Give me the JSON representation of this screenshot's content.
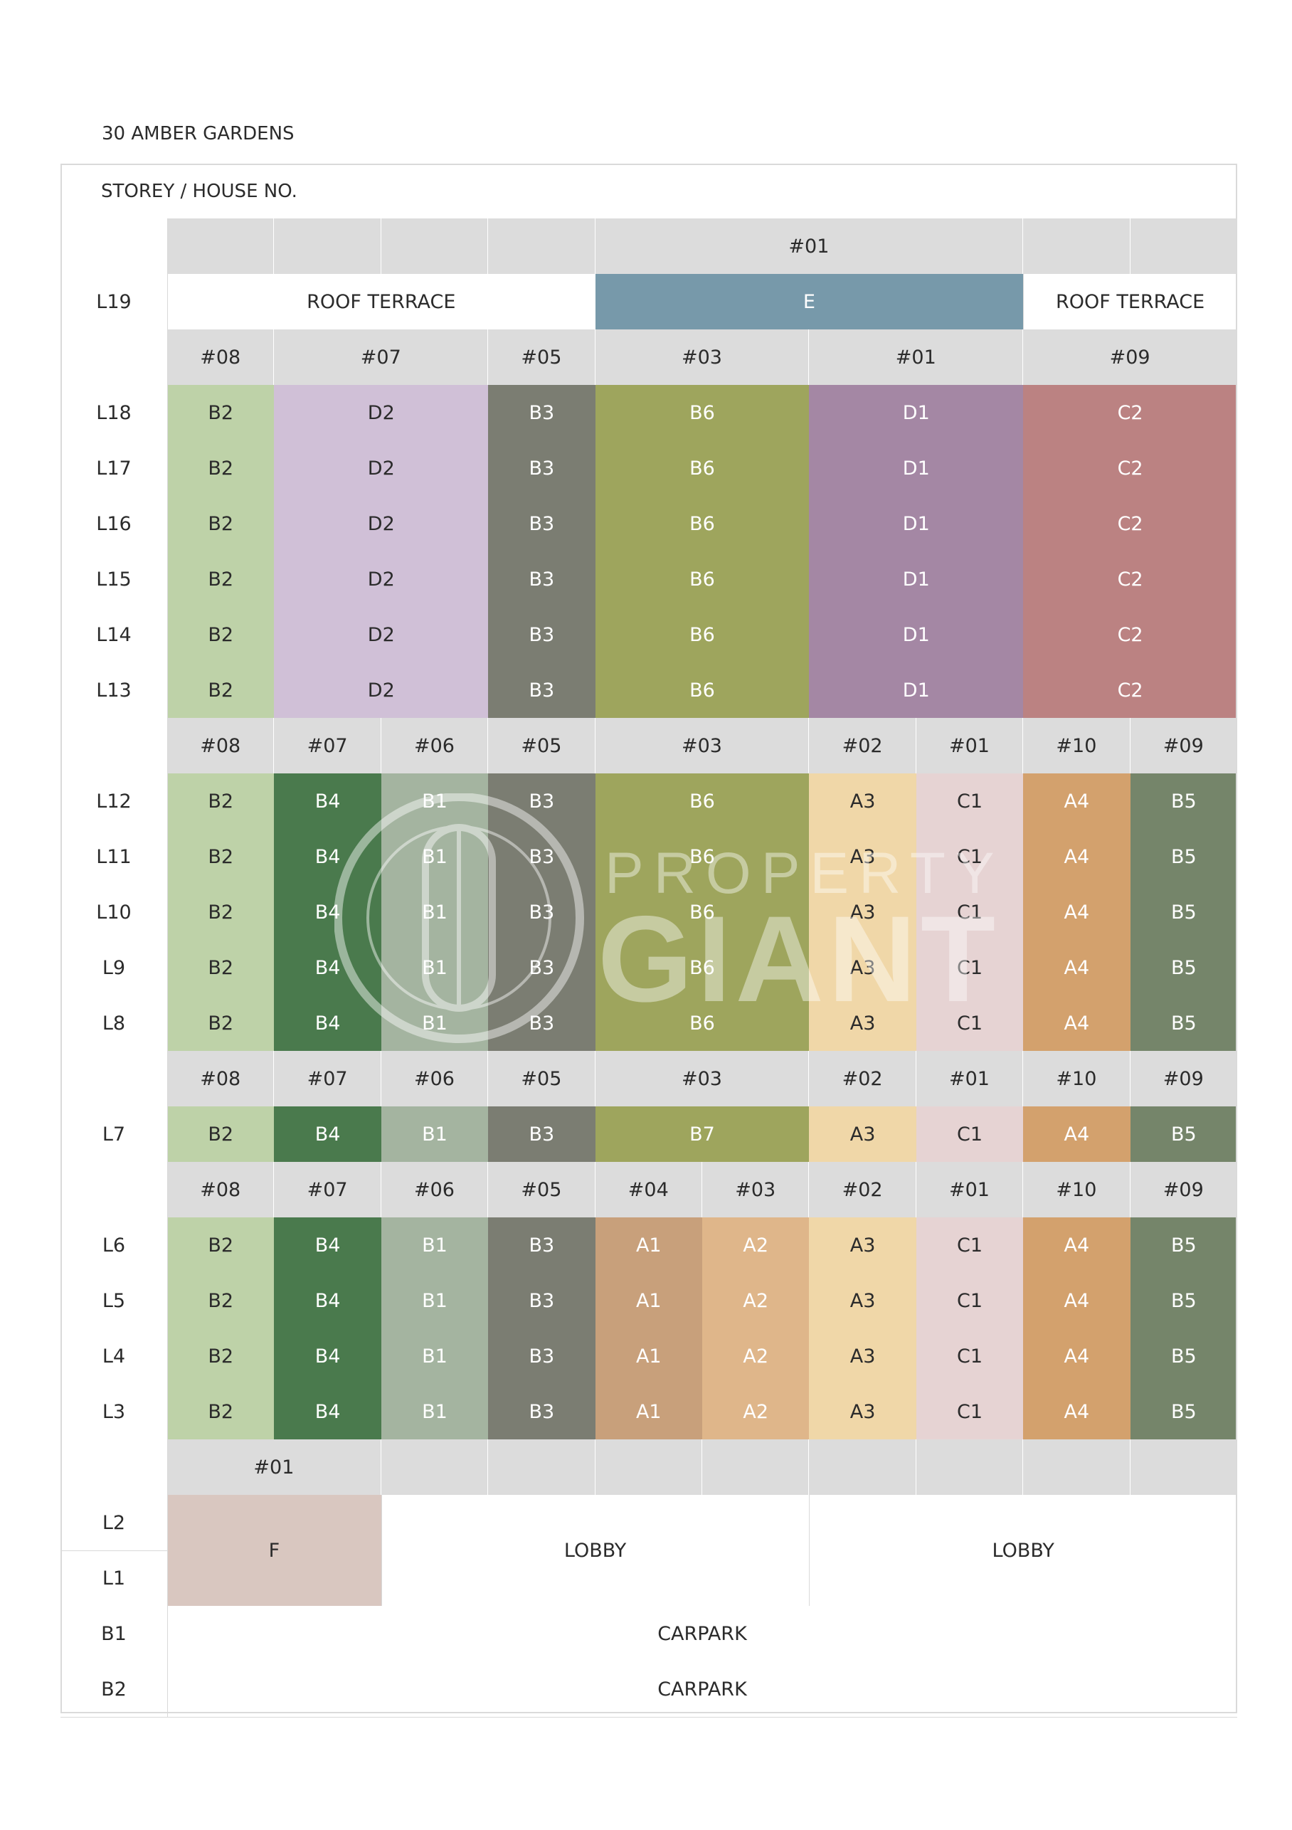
{
  "title": "30 AMBER GARDENS",
  "header_label": "STOREY / HOUSE NO.",
  "watermark": {
    "line1": "PROPERTY",
    "line2": "GIANT"
  },
  "colors": {
    "A1": "#c8a07b",
    "A2": "#dfb68a",
    "A3": "#f0d7a8",
    "A4": "#d3a16d",
    "B1": "#a4b4a0",
    "B2": "#bed2a8",
    "B3": "#7b7d72",
    "B4": "#4a7a4d",
    "B5": "#75856a",
    "B6": "#9ea55d",
    "B7": "#9ea55d",
    "C1": "#e6d3d3",
    "C2": "#bb8282",
    "D1": "#a487a4",
    "D2": "#d0c0d7",
    "E": "#7799aa",
    "F": "#d9c7c0",
    "header": "#dcdcdc"
  },
  "storeys": [
    "L19",
    "L18",
    "L17",
    "L16",
    "L15",
    "L14",
    "L13",
    "L12",
    "L11",
    "L10",
    "L9",
    "L8",
    "L7",
    "L6",
    "L5",
    "L4",
    "L3",
    "L2",
    "L1",
    "B1",
    "B2"
  ],
  "tiers": [
    {
      "header": [
        [
          "",
          1
        ],
        [
          "",
          1
        ],
        [
          "",
          1
        ],
        [
          "",
          1
        ],
        [
          "#01",
          4
        ],
        [
          "",
          1
        ],
        [
          "",
          1
        ]
      ],
      "rows": [
        {
          "storey": "L19",
          "cells": [
            [
              "ROOF TERRACE",
              4,
              "white"
            ],
            [
              "E",
              4,
              "E"
            ],
            [
              "ROOF TERRACE",
              2,
              "white"
            ]
          ]
        }
      ]
    },
    {
      "header": [
        [
          "#08",
          1
        ],
        [
          "#07",
          2
        ],
        [
          "#05",
          1
        ],
        [
          "#03",
          2
        ],
        [
          "#01",
          2
        ],
        [
          "#09",
          2
        ]
      ],
      "rows": [
        {
          "storey": "L18",
          "cells": [
            [
              "B2",
              1
            ],
            [
              "D2",
              2
            ],
            [
              "B3",
              1
            ],
            [
              "B6",
              2
            ],
            [
              "D1",
              2
            ],
            [
              "C2",
              2
            ]
          ]
        },
        {
          "storey": "L17",
          "cells": [
            [
              "B2",
              1
            ],
            [
              "D2",
              2
            ],
            [
              "B3",
              1
            ],
            [
              "B6",
              2
            ],
            [
              "D1",
              2
            ],
            [
              "C2",
              2
            ]
          ]
        },
        {
          "storey": "L16",
          "cells": [
            [
              "B2",
              1
            ],
            [
              "D2",
              2
            ],
            [
              "B3",
              1
            ],
            [
              "B6",
              2
            ],
            [
              "D1",
              2
            ],
            [
              "C2",
              2
            ]
          ]
        },
        {
          "storey": "L15",
          "cells": [
            [
              "B2",
              1
            ],
            [
              "D2",
              2
            ],
            [
              "B3",
              1
            ],
            [
              "B6",
              2
            ],
            [
              "D1",
              2
            ],
            [
              "C2",
              2
            ]
          ]
        },
        {
          "storey": "L14",
          "cells": [
            [
              "B2",
              1
            ],
            [
              "D2",
              2
            ],
            [
              "B3",
              1
            ],
            [
              "B6",
              2
            ],
            [
              "D1",
              2
            ],
            [
              "C2",
              2
            ]
          ]
        },
        {
          "storey": "L13",
          "cells": [
            [
              "B2",
              1
            ],
            [
              "D2",
              2
            ],
            [
              "B3",
              1
            ],
            [
              "B6",
              2
            ],
            [
              "D1",
              2
            ],
            [
              "C2",
              2
            ]
          ]
        }
      ]
    },
    {
      "header": [
        [
          "#08",
          1
        ],
        [
          "#07",
          1
        ],
        [
          "#06",
          1
        ],
        [
          "#05",
          1
        ],
        [
          "#03",
          2
        ],
        [
          "#02",
          1
        ],
        [
          "#01",
          1
        ],
        [
          "#10",
          1
        ],
        [
          "#09",
          1
        ]
      ],
      "rows": [
        {
          "storey": "L12",
          "cells": [
            [
              "B2",
              1
            ],
            [
              "B4",
              1
            ],
            [
              "B1",
              1
            ],
            [
              "B3",
              1
            ],
            [
              "B6",
              2
            ],
            [
              "A3",
              1
            ],
            [
              "C1",
              1
            ],
            [
              "A4",
              1
            ],
            [
              "B5",
              1
            ]
          ]
        },
        {
          "storey": "L11",
          "cells": [
            [
              "B2",
              1
            ],
            [
              "B4",
              1
            ],
            [
              "B1",
              1
            ],
            [
              "B3",
              1
            ],
            [
              "B6",
              2
            ],
            [
              "A3",
              1
            ],
            [
              "C1",
              1
            ],
            [
              "A4",
              1
            ],
            [
              "B5",
              1
            ]
          ]
        },
        {
          "storey": "L10",
          "cells": [
            [
              "B2",
              1
            ],
            [
              "B4",
              1
            ],
            [
              "B1",
              1
            ],
            [
              "B3",
              1
            ],
            [
              "B6",
              2
            ],
            [
              "A3",
              1
            ],
            [
              "C1",
              1
            ],
            [
              "A4",
              1
            ],
            [
              "B5",
              1
            ]
          ]
        },
        {
          "storey": "L9",
          "cells": [
            [
              "B2",
              1
            ],
            [
              "B4",
              1
            ],
            [
              "B1",
              1
            ],
            [
              "B3",
              1
            ],
            [
              "B6",
              2
            ],
            [
              "A3",
              1
            ],
            [
              "C1",
              1
            ],
            [
              "A4",
              1
            ],
            [
              "B5",
              1
            ]
          ]
        },
        {
          "storey": "L8",
          "cells": [
            [
              "B2",
              1
            ],
            [
              "B4",
              1
            ],
            [
              "B1",
              1
            ],
            [
              "B3",
              1
            ],
            [
              "B6",
              2
            ],
            [
              "A3",
              1
            ],
            [
              "C1",
              1
            ],
            [
              "A4",
              1
            ],
            [
              "B5",
              1
            ]
          ]
        }
      ]
    },
    {
      "header": [
        [
          "#08",
          1
        ],
        [
          "#07",
          1
        ],
        [
          "#06",
          1
        ],
        [
          "#05",
          1
        ],
        [
          "#03",
          2
        ],
        [
          "#02",
          1
        ],
        [
          "#01",
          1
        ],
        [
          "#10",
          1
        ],
        [
          "#09",
          1
        ]
      ],
      "rows": [
        {
          "storey": "L7",
          "cells": [
            [
              "B2",
              1
            ],
            [
              "B4",
              1
            ],
            [
              "B1",
              1
            ],
            [
              "B3",
              1
            ],
            [
              "B7",
              2
            ],
            [
              "A3",
              1
            ],
            [
              "C1",
              1
            ],
            [
              "A4",
              1
            ],
            [
              "B5",
              1
            ]
          ]
        }
      ]
    },
    {
      "header": [
        [
          "#08",
          1
        ],
        [
          "#07",
          1
        ],
        [
          "#06",
          1
        ],
        [
          "#05",
          1
        ],
        [
          "#04",
          1
        ],
        [
          "#03",
          1
        ],
        [
          "#02",
          1
        ],
        [
          "#01",
          1
        ],
        [
          "#10",
          1
        ],
        [
          "#09",
          1
        ]
      ],
      "rows": [
        {
          "storey": "L6",
          "cells": [
            [
              "B2",
              1
            ],
            [
              "B4",
              1
            ],
            [
              "B1",
              1
            ],
            [
              "B3",
              1
            ],
            [
              "A1",
              1
            ],
            [
              "A2",
              1
            ],
            [
              "A3",
              1
            ],
            [
              "C1",
              1
            ],
            [
              "A4",
              1
            ],
            [
              "B5",
              1
            ]
          ]
        },
        {
          "storey": "L5",
          "cells": [
            [
              "B2",
              1
            ],
            [
              "B4",
              1
            ],
            [
              "B1",
              1
            ],
            [
              "B3",
              1
            ],
            [
              "A1",
              1
            ],
            [
              "A2",
              1
            ],
            [
              "A3",
              1
            ],
            [
              "C1",
              1
            ],
            [
              "A4",
              1
            ],
            [
              "B5",
              1
            ]
          ]
        },
        {
          "storey": "L4",
          "cells": [
            [
              "B2",
              1
            ],
            [
              "B4",
              1
            ],
            [
              "B1",
              1
            ],
            [
              "B3",
              1
            ],
            [
              "A1",
              1
            ],
            [
              "A2",
              1
            ],
            [
              "A3",
              1
            ],
            [
              "C1",
              1
            ],
            [
              "A4",
              1
            ],
            [
              "B5",
              1
            ]
          ]
        },
        {
          "storey": "L3",
          "cells": [
            [
              "B2",
              1
            ],
            [
              "B4",
              1
            ],
            [
              "B1",
              1
            ],
            [
              "B3",
              1
            ],
            [
              "A1",
              1
            ],
            [
              "A2",
              1
            ],
            [
              "A3",
              1
            ],
            [
              "C1",
              1
            ],
            [
              "A4",
              1
            ],
            [
              "B5",
              1
            ]
          ]
        }
      ]
    },
    {
      "header": [
        [
          "#01",
          2
        ],
        [
          "",
          1
        ],
        [
          "",
          1
        ],
        [
          "",
          1
        ],
        [
          "",
          1
        ],
        [
          "",
          1
        ],
        [
          "",
          1
        ],
        [
          "",
          1
        ],
        [
          "",
          1
        ]
      ],
      "double_rows": {
        "storeys": [
          "L2",
          "L1"
        ],
        "cells": [
          [
            "F",
            2,
            "F"
          ],
          [
            "LOBBY",
            4,
            "white"
          ],
          [
            "LOBBY",
            4,
            "white"
          ]
        ]
      }
    }
  ],
  "basement": [
    {
      "storey": "B1",
      "label": "CARPARK"
    },
    {
      "storey": "B2",
      "label": "CARPARK"
    }
  ]
}
